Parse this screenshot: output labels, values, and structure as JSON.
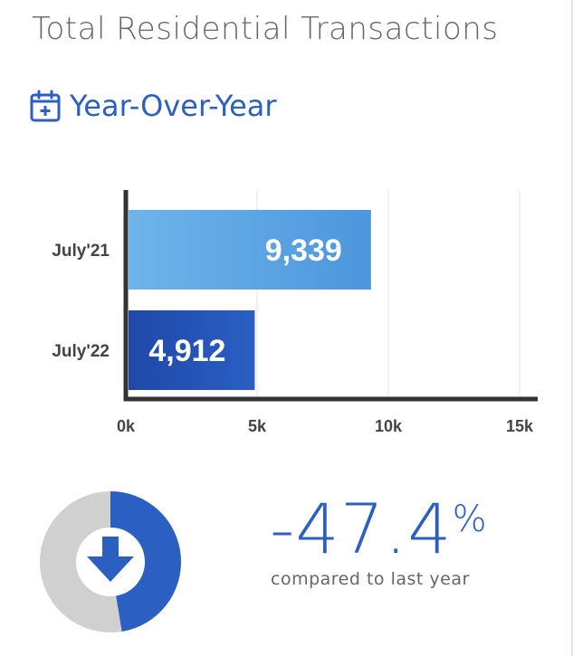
{
  "header": {
    "title": "Total Residential Transactions",
    "subtitle": "Year-Over-Year",
    "icon": "calendar-plus-icon"
  },
  "chart_data": {
    "type": "bar",
    "orientation": "horizontal",
    "categories": [
      "July'21",
      "July'22"
    ],
    "values": [
      9339,
      4912
    ],
    "value_labels": [
      "9,339",
      "4,912"
    ],
    "xlim": [
      0,
      15000
    ],
    "xticks": [
      0,
      5000,
      10000,
      15000
    ],
    "xtick_labels": [
      "0k",
      "5k",
      "10k",
      "15k"
    ],
    "grid": true,
    "colors": [
      "#5aa2e0",
      "#2354b8"
    ]
  },
  "summary": {
    "change_value": "-47.4",
    "change_unit": "%",
    "caption": "compared to last year",
    "direction_icon": "arrow-down-icon",
    "donut_fraction": 0.474,
    "colors": {
      "accent": "#2c5fc2",
      "track": "#d0d0d0"
    }
  }
}
